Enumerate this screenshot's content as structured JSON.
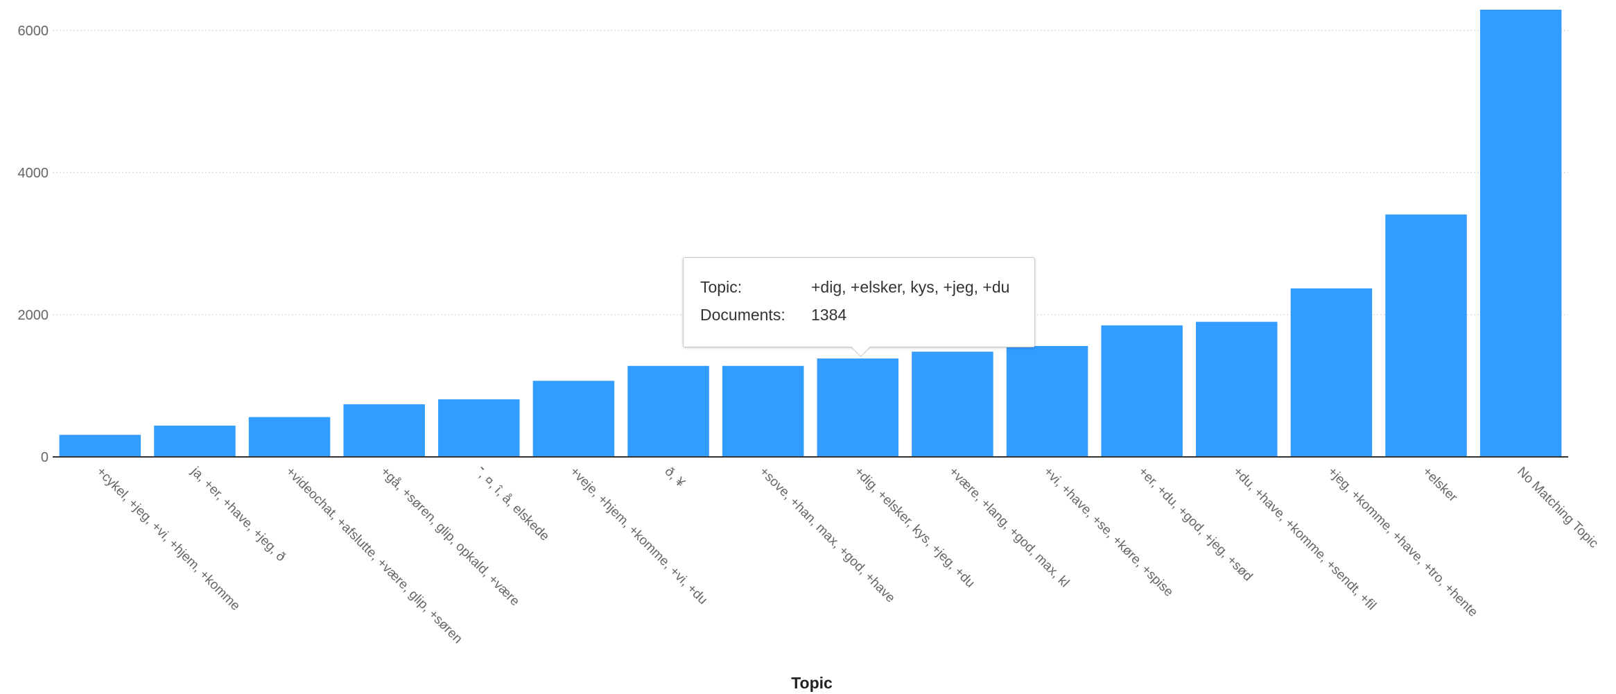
{
  "chart_data": {
    "type": "bar",
    "xlabel": "Topic",
    "ylabel": "",
    "ylim": [
      0,
      6300
    ],
    "yticks": [
      0,
      2000,
      4000,
      6000
    ],
    "grid": true,
    "bar_color": "#339cff",
    "categories": [
      "+cykel, +jeg, +vi, +hjem, +komme",
      "ja, +er, +have, +jeg, ð",
      "+videochat, +afslutte, +være, glip, +søren",
      "+gå, +søren, glip, opkald, +være",
      "־, ¤, î, å, elskede",
      "+veje, +hjem, +komme, +vi, +du",
      "ð, ¥",
      "+sove, +han, max, +god, +have",
      "+dig, +elsker, kys, +jeg, +du",
      "+være, +lang, +god, max, kl",
      "+vi, +have, +se, +køre, +spise",
      "+er, +du, +god, +jeg, +sød",
      "+du, +have, +komme, +sendt, +fil",
      "+jeg, +komme, +have, +tro, +hente",
      "+elsker",
      "No Matching Topic"
    ],
    "values": [
      310,
      440,
      560,
      740,
      810,
      1070,
      1280,
      1280,
      1384,
      1480,
      1560,
      1850,
      1900,
      2370,
      3410,
      6290
    ]
  },
  "tooltip": {
    "topic_key": "Topic:",
    "topic_value": "+dig, +elsker, kys, +jeg, +du",
    "documents_key": "Documents:",
    "documents_value": "1384"
  }
}
